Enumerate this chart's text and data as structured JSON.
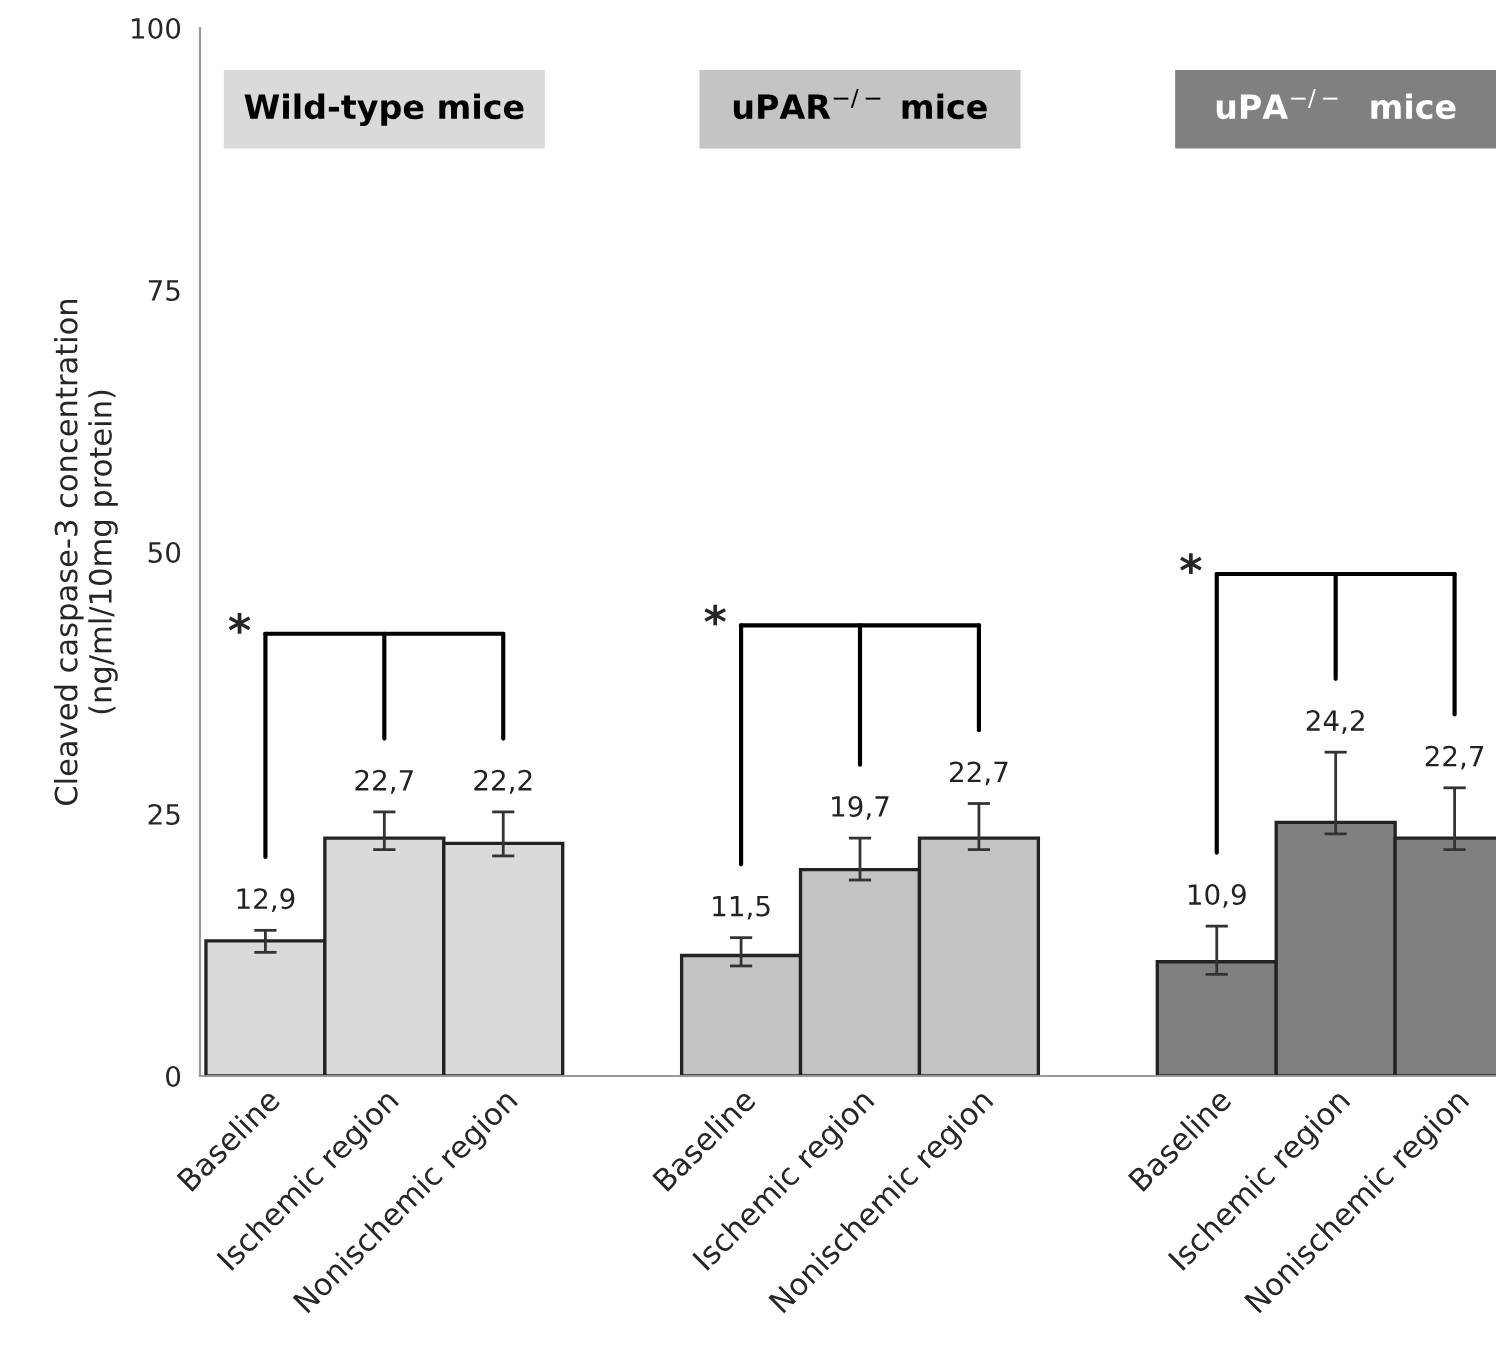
{
  "chart_data": {
    "type": "bar",
    "categories": [
      "Baseline",
      "Ischemic region",
      "Nonischemic region",
      null,
      "Baseline",
      "Ischemic region",
      "Nonischemic region",
      null,
      "Baseline",
      "Ischemic region",
      "Nonischemic region"
    ],
    "ylabel": "Cleaved caspase-3 concentration\n(ng/ml/10mg protein)",
    "ylim": [
      0,
      100
    ],
    "yticks": [
      0,
      25,
      50,
      75,
      100
    ],
    "series": [
      {
        "name": "Wild-type mice",
        "color": "#dadada",
        "values": [
          12.9,
          22.7,
          22.2,
          null,
          null,
          null,
          null,
          null,
          null,
          null,
          null
        ],
        "errors": [
          [
            11.8,
            13.9
          ],
          [
            21.6,
            25.2
          ],
          [
            21.0,
            25.2
          ],
          null,
          null,
          null,
          null,
          null,
          null,
          null,
          null
        ],
        "value_labels": [
          "12,9",
          "22,7",
          "22,2",
          null,
          null,
          null,
          null,
          null,
          null,
          null,
          null
        ]
      },
      {
        "name": "uPAR$^{−/−}$ mice",
        "color": "#c4c4c4",
        "values": [
          null,
          null,
          null,
          null,
          11.5,
          19.7,
          22.7,
          null,
          null,
          null,
          null
        ],
        "errors": [
          null,
          null,
          null,
          null,
          [
            10.5,
            13.2
          ],
          [
            18.7,
            22.7
          ],
          [
            21.6,
            26.0
          ],
          null,
          null,
          null,
          null
        ],
        "value_labels": [
          null,
          null,
          null,
          null,
          "11,5",
          "19,7",
          "22,7",
          null,
          null,
          null,
          null
        ]
      },
      {
        "name": "uPA$^{−/−}$  mice",
        "color": "#808080",
        "values": [
          null,
          null,
          null,
          null,
          null,
          null,
          null,
          null,
          10.9,
          24.2,
          22.7
        ],
        "errors": [
          null,
          null,
          null,
          null,
          null,
          null,
          null,
          null,
          [
            9.7,
            14.3
          ],
          [
            23.1,
            30.9
          ],
          [
            21.6,
            27.5
          ]
        ],
        "value_labels": [
          null,
          null,
          null,
          null,
          null,
          null,
          null,
          null,
          "10,9",
          "24,2",
          "22,7"
        ]
      }
    ],
    "annotations": [
      "*",
      "*",
      "*"
    ],
    "grid": false,
    "legend": false
  }
}
